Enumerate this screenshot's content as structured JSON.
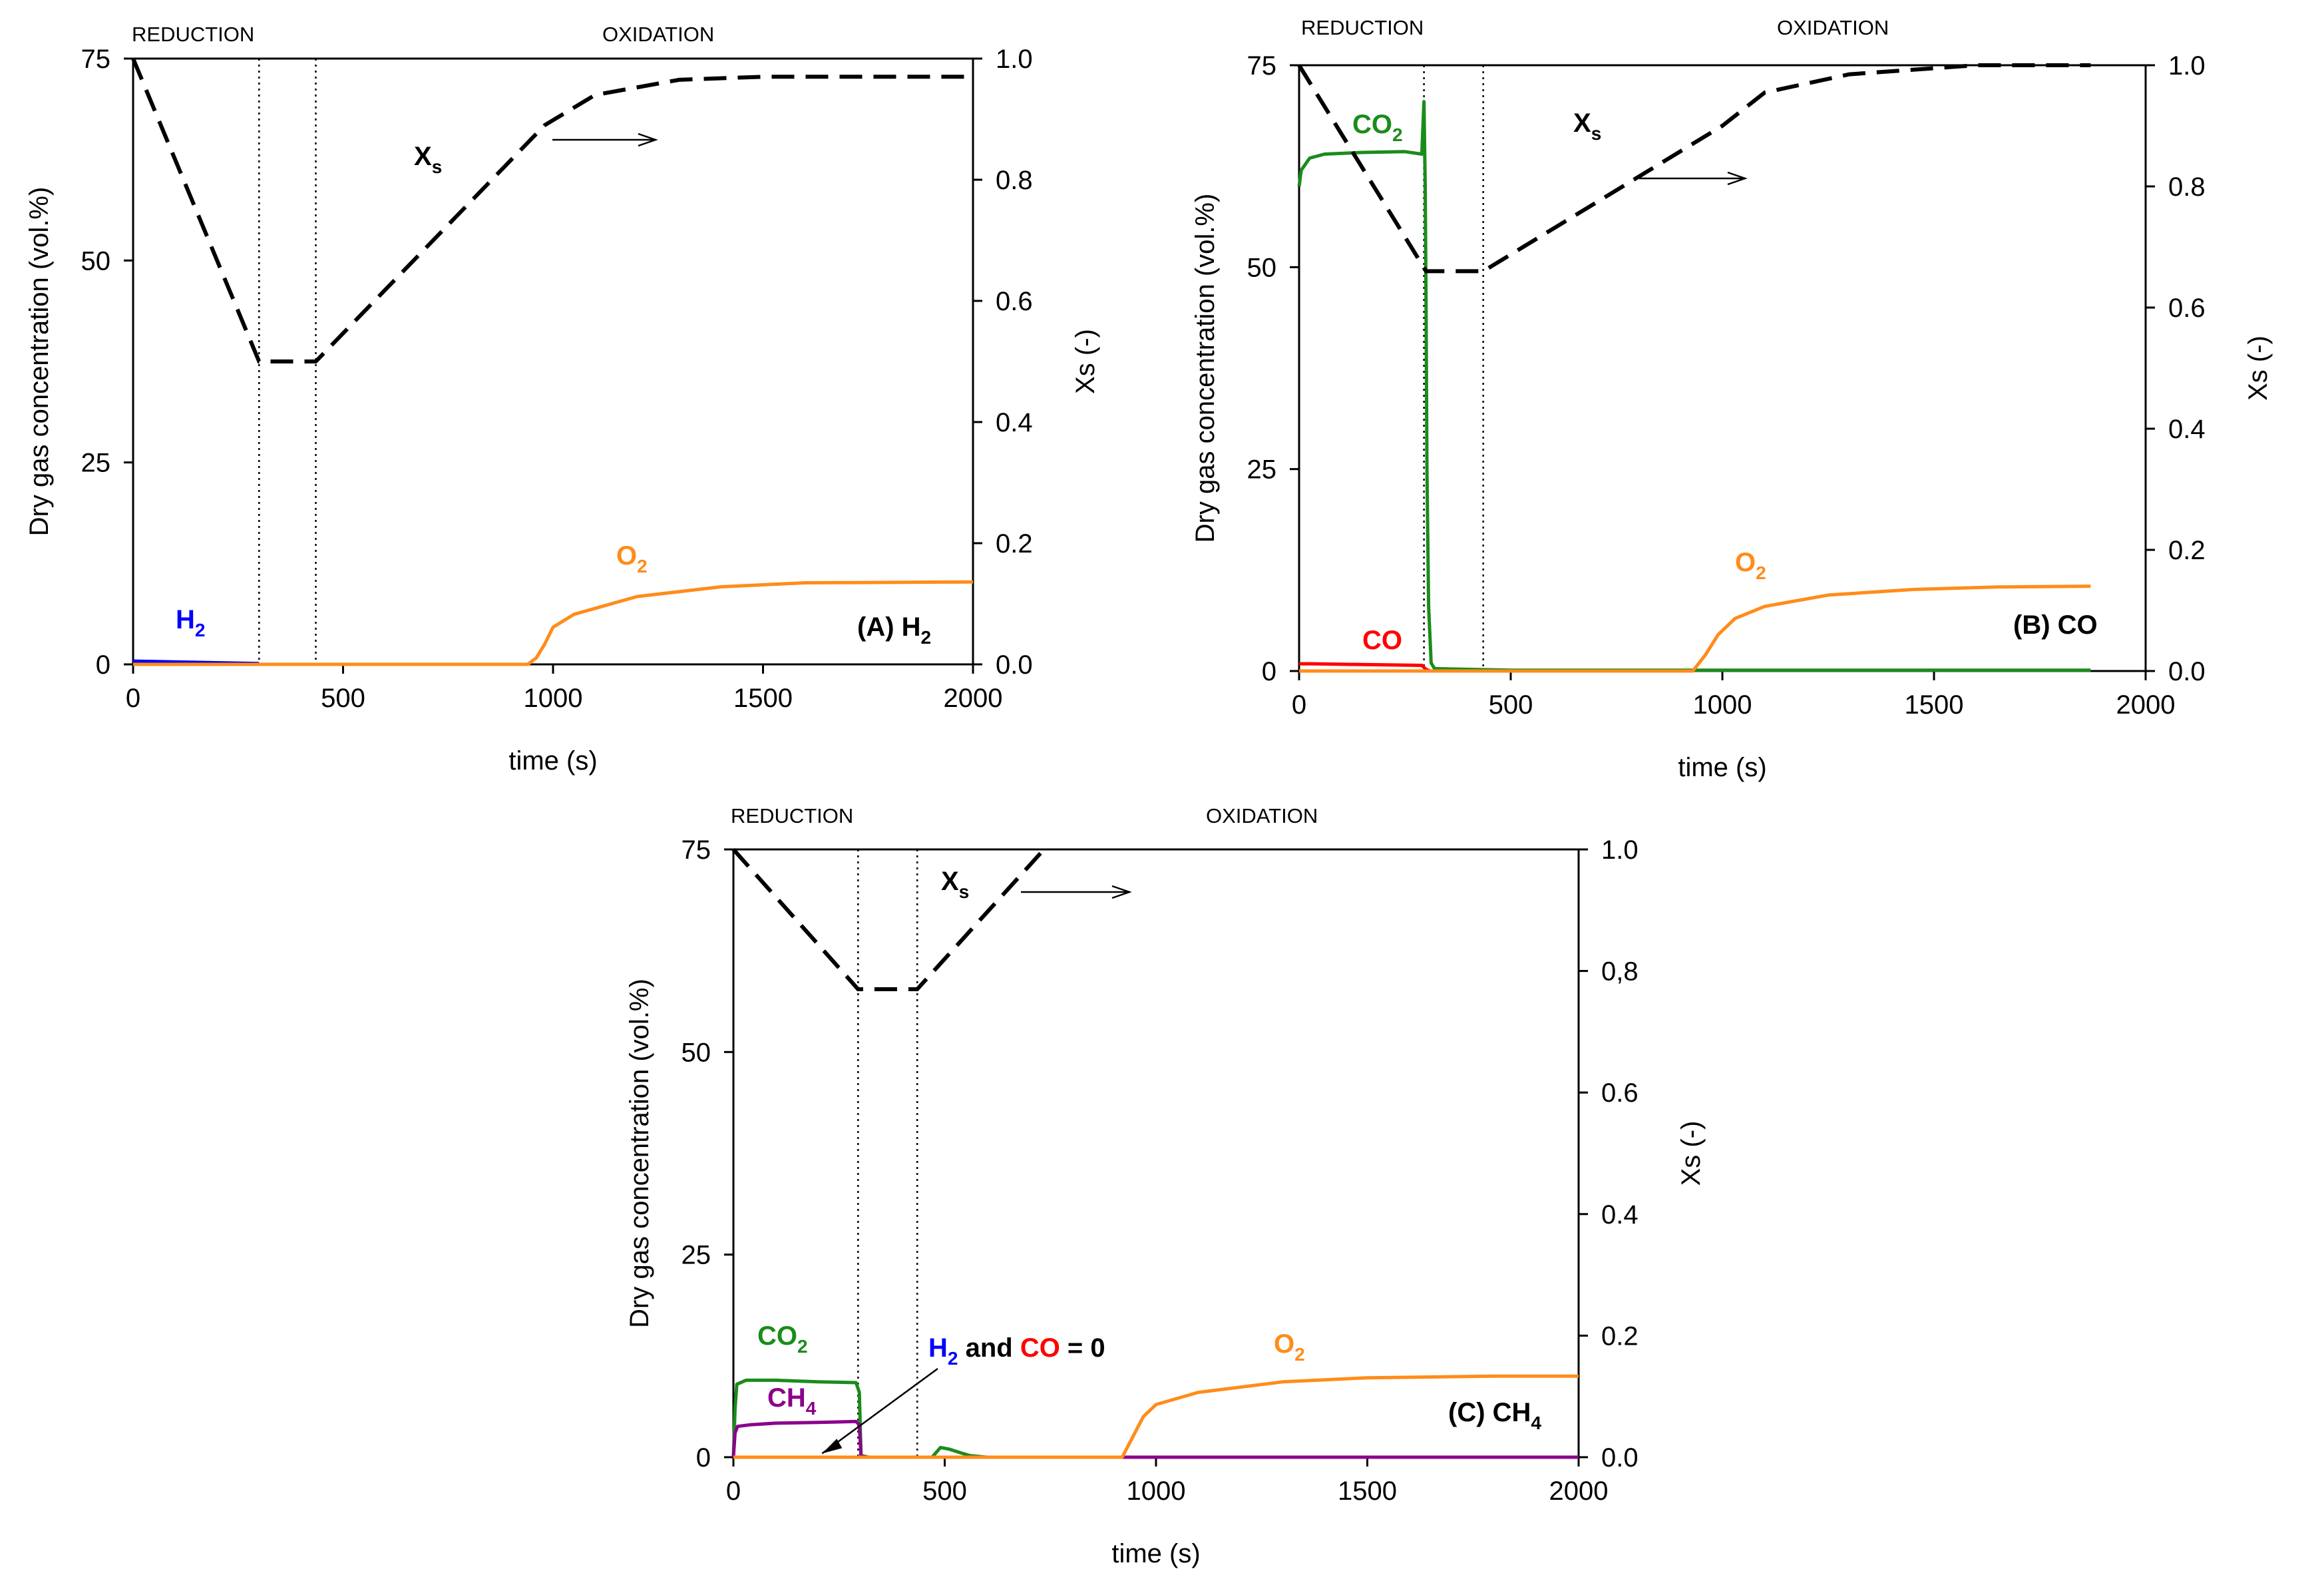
{
  "chart_data": [
    {
      "type": "line",
      "panel_label": "(A) H",
      "panel_label_sub": "2",
      "xlabel": "time (s)",
      "ylabel": "Dry gas concentration (vol.%)",
      "y2label": "Xs (-)",
      "xlim": [
        0,
        2000
      ],
      "ylim": [
        0,
        75
      ],
      "y2lim": [
        0,
        1.0
      ],
      "x_ticks": [
        "0",
        "500",
        "1000",
        "1500",
        "2000"
      ],
      "y_ticks": [
        "0",
        "25",
        "50",
        "75"
      ],
      "y2_ticks": [
        "0.0",
        "0.2",
        "0.4",
        "0.6",
        "0.8",
        "1.0"
      ],
      "phases": {
        "reduction": "REDUCTION",
        "oxidation": "OXIDATION"
      },
      "phase_boundaries": [
        300,
        435
      ],
      "xs_label": "X",
      "xs_label_sub": "s",
      "xs_curve": {
        "x": [
          0,
          300,
          435,
          980,
          1100,
          1300,
          1500,
          2000
        ],
        "y": [
          1.0,
          0.5,
          0.5,
          0.89,
          0.94,
          0.965,
          0.97,
          0.97
        ]
      },
      "series": [
        {
          "name": "H2",
          "label": "H",
          "label_sub": "2",
          "color": "#0000ff",
          "x": [
            0,
            300
          ],
          "y": [
            0.4,
            0.1
          ]
        },
        {
          "name": "O2",
          "label": "O",
          "label_sub": "2",
          "color": "#ff8c1a",
          "x": [
            0,
            940,
            960,
            980,
            1000,
            1050,
            1200,
            1400,
            1600,
            2000
          ],
          "y": [
            0,
            0,
            0.8,
            2.5,
            4.6,
            6.2,
            8.4,
            9.6,
            10.1,
            10.2
          ]
        }
      ]
    },
    {
      "type": "line",
      "panel_label": "(B) CO",
      "panel_label_sub": "",
      "xlabel": "time (s)",
      "ylabel": "Dry gas concentration (vol.%)",
      "y2label": "Xs (-)",
      "xlim": [
        0,
        2000
      ],
      "ylim": [
        0,
        75
      ],
      "y2lim": [
        0,
        1.0
      ],
      "x_ticks": [
        "0",
        "500",
        "1000",
        "1500",
        "2000"
      ],
      "y_ticks": [
        "0",
        "25",
        "50",
        "75"
      ],
      "y2_ticks": [
        "0.0",
        "0.2",
        "0.4",
        "0.6",
        "0.8",
        "1.0"
      ],
      "phases": {
        "reduction": "REDUCTION",
        "oxidation": "OXIDATION"
      },
      "phase_boundaries": [
        295,
        435
      ],
      "xs_label": "X",
      "xs_label_sub": "s",
      "xs_curve": {
        "x": [
          0,
          300,
          435,
          1000,
          1100,
          1300,
          1600,
          1870
        ],
        "y": [
          1.0,
          0.66,
          0.66,
          0.9,
          0.955,
          0.985,
          1.0,
          1.0
        ]
      },
      "series": [
        {
          "name": "CO2",
          "label": "CO",
          "label_sub": "2",
          "color": "#1a8c1a",
          "x": [
            0,
            5,
            25,
            60,
            150,
            250,
            290,
            295,
            298,
            300,
            302,
            306,
            312,
            320,
            500,
            1870
          ],
          "y": [
            60,
            62,
            63.5,
            64,
            64.2,
            64.3,
            64,
            70.5,
            60,
            45,
            25,
            8,
            1,
            0.3,
            0.1,
            0.1
          ]
        },
        {
          "name": "CO",
          "label": "CO",
          "label_sub": "",
          "color": "#ff0000",
          "x": [
            0,
            30,
            150,
            290,
            300,
            310
          ],
          "y": [
            0.9,
            0.9,
            0.8,
            0.7,
            0.2,
            0
          ]
        },
        {
          "name": "O2",
          "label": "O",
          "label_sub": "2",
          "color": "#ff8c1a",
          "x": [
            0,
            930,
            960,
            990,
            1030,
            1100,
            1250,
            1450,
            1650,
            1870
          ],
          "y": [
            0,
            0,
            2,
            4.5,
            6.5,
            8,
            9.4,
            10.1,
            10.4,
            10.5
          ]
        }
      ]
    },
    {
      "type": "line",
      "panel_label": "(C) CH",
      "panel_label_sub": "4",
      "xlabel": "time (s)",
      "ylabel": "Dry gas concentration (vol.%)",
      "y2label": "Xs (-)",
      "xlim": [
        0,
        2000
      ],
      "ylim": [
        0,
        75
      ],
      "y2lim": [
        0,
        1.0
      ],
      "x_ticks": [
        "0",
        "500",
        "1000",
        "1500",
        "2000"
      ],
      "y_ticks": [
        "0",
        "25",
        "50",
        "75"
      ],
      "y2_ticks": [
        "0.0",
        "0.2",
        "0.4",
        "0.6",
        "0,8",
        "1.0"
      ],
      "phases": {
        "reduction": "REDUCTION",
        "oxidation": "OXIDATION"
      },
      "phase_boundaries": [
        295,
        435
      ],
      "xs_label": "X",
      "xs_label_sub": "s",
      "xs_curve": {
        "x": [
          0,
          295,
          435,
          735
        ],
        "y": [
          1.0,
          0.77,
          0.77,
          1.0
        ]
      },
      "annotation": {
        "text_a": "H",
        "text_a_sub": "2",
        "text_mid": " and ",
        "text_b": "CO",
        "text_end": " = 0",
        "color_a": "#0000ff",
        "color_b": "#ff0000",
        "color_end": "#000000",
        "arrow_to_x": 210,
        "arrow_to_y": 0.3
      },
      "series": [
        {
          "name": "CO2",
          "label": "CO",
          "label_sub": "2",
          "color": "#1a8c1a",
          "x": [
            0,
            4,
            8,
            30,
            100,
            200,
            290,
            298,
            302,
            320,
            470,
            490,
            510,
            540,
            560,
            600,
            2000
          ],
          "y": [
            0,
            6,
            9,
            9.5,
            9.5,
            9.3,
            9.2,
            8,
            0.2,
            0,
            0,
            1.2,
            1,
            0.5,
            0.2,
            0,
            0
          ]
        },
        {
          "name": "CH4",
          "label": "CH",
          "label_sub": "4",
          "color": "#8b008b",
          "x": [
            0,
            4,
            10,
            40,
            100,
            200,
            290,
            298,
            302,
            320,
            2000
          ],
          "y": [
            0,
            3,
            3.8,
            4,
            4.2,
            4.3,
            4.4,
            4,
            0.1,
            0,
            0
          ]
        },
        {
          "name": "O2",
          "label": "O",
          "label_sub": "2",
          "color": "#ff8c1a",
          "x": [
            0,
            920,
            945,
            970,
            1000,
            1100,
            1300,
            1500,
            1800,
            2000
          ],
          "y": [
            0,
            0,
            2.5,
            5,
            6.5,
            8,
            9.3,
            9.8,
            10,
            10
          ]
        }
      ]
    }
  ]
}
